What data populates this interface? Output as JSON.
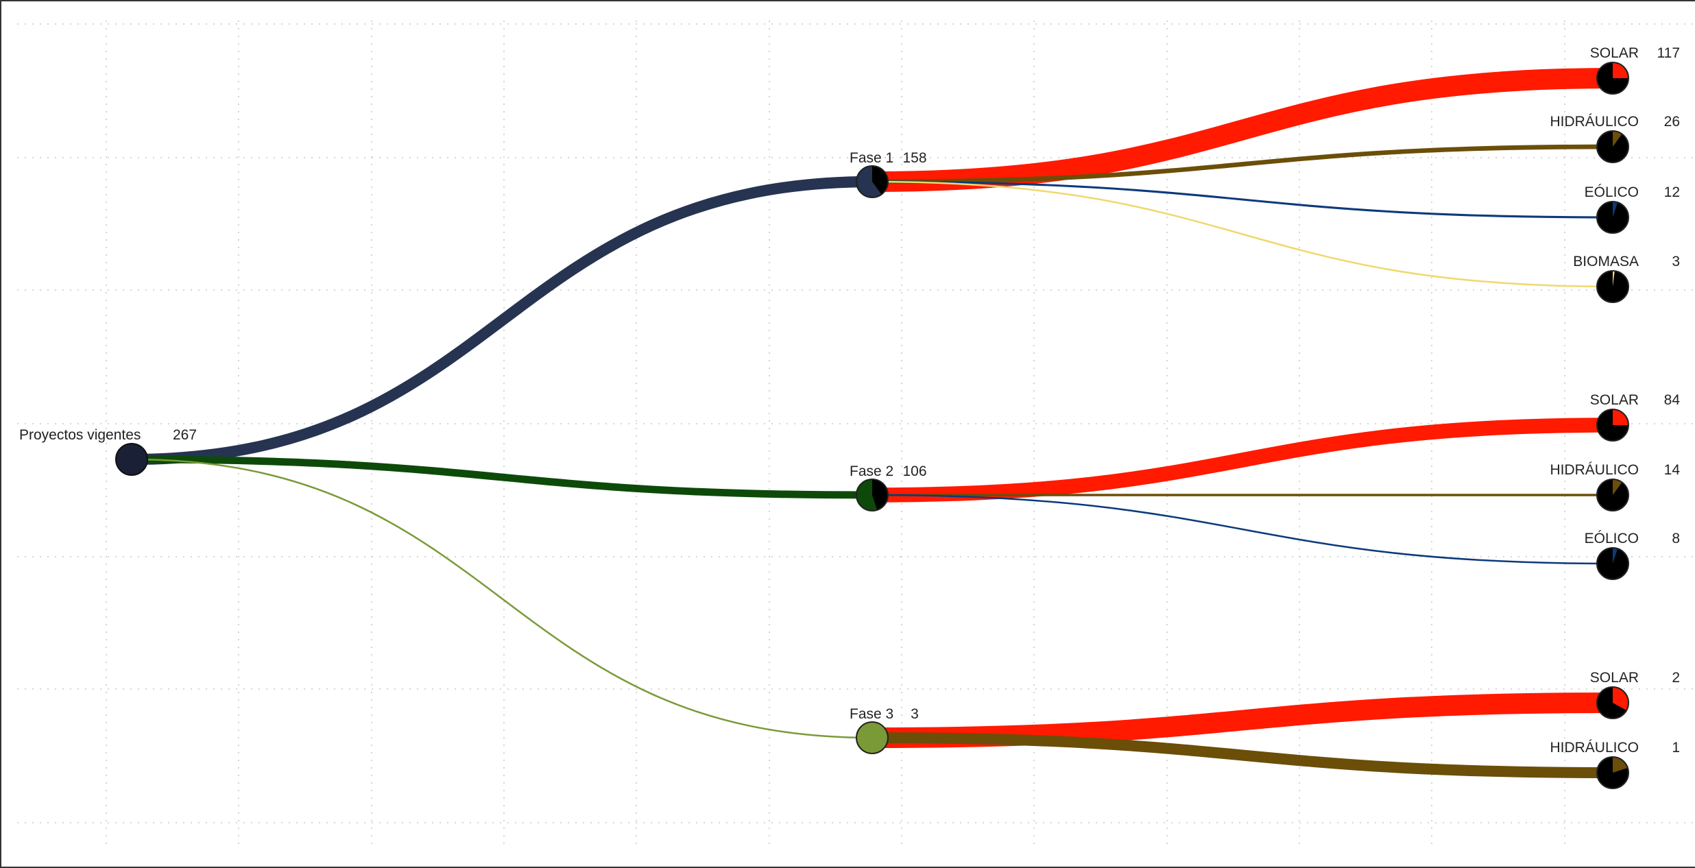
{
  "root": {
    "label": "Proyectos vigentes",
    "count": "267",
    "color": "#1a2035"
  },
  "phases": [
    {
      "id": "fase1",
      "label": "Fase 1",
      "count": "158",
      "color": "#263452",
      "children": [
        {
          "id": "solar",
          "label": "SOLAR",
          "count": "117",
          "color": "#ff1a00",
          "share": 0.25
        },
        {
          "id": "hidraulico",
          "label": "HIDRÁULICO",
          "count": "26",
          "color": "#6b4e08",
          "share": 0.1
        },
        {
          "id": "eolico",
          "label": "EÓLICO",
          "count": "12",
          "color": "#0c3a7a",
          "share": 0.05
        },
        {
          "id": "biomasa",
          "label": "BIOMASA",
          "count": "3",
          "color": "#f0d86e",
          "share": 0.02
        }
      ]
    },
    {
      "id": "fase2",
      "label": "Fase 2",
      "count": "106",
      "color": "#0d4a0a",
      "children": [
        {
          "id": "solar",
          "label": "SOLAR",
          "count": "84",
          "color": "#ff1a00",
          "share": 0.25
        },
        {
          "id": "hidraulico",
          "label": "HIDRÁULICO",
          "count": "14",
          "color": "#6b4e08",
          "share": 0.1
        },
        {
          "id": "eolico",
          "label": "EÓLICO",
          "count": "8",
          "color": "#0c3a7a",
          "share": 0.05
        }
      ]
    },
    {
      "id": "fase3",
      "label": "Fase 3",
      "count": "3",
      "color": "#7a9a38",
      "children": [
        {
          "id": "solar",
          "label": "SOLAR",
          "count": "2",
          "color": "#ff1a00",
          "share": 0.33
        },
        {
          "id": "hidraulico",
          "label": "HIDRÁULICO",
          "count": "1",
          "color": "#6b4e08",
          "share": 0.2
        }
      ]
    }
  ]
}
